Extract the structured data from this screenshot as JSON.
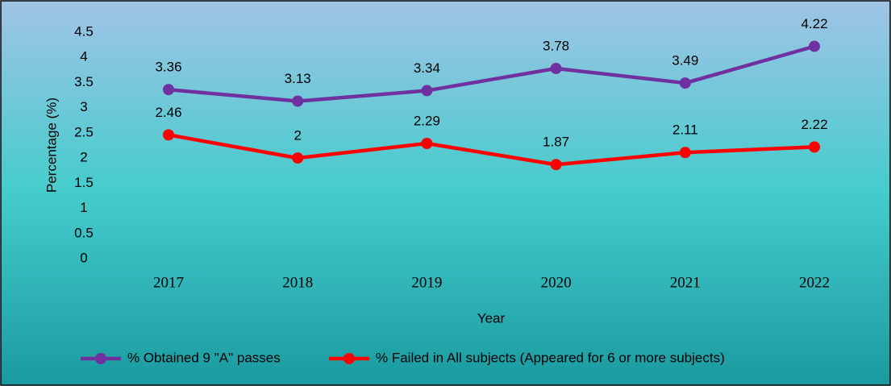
{
  "chart_data": {
    "type": "line",
    "categories": [
      "2017",
      "2018",
      "2019",
      "2020",
      "2021",
      "2022"
    ],
    "series": [
      {
        "name": "% Obtained 9 \"A\" passes",
        "color": "#7030a0",
        "values": [
          3.36,
          3.13,
          3.34,
          3.78,
          3.49,
          4.22
        ]
      },
      {
        "name": "% Failed in All subjects (Appeared for 6 or more subjects)",
        "color": "#ff0000",
        "values": [
          2.46,
          2,
          2.29,
          1.87,
          2.11,
          2.22
        ]
      }
    ],
    "xlabel": "Year",
    "ylabel": "Percentage (%)",
    "ylim": [
      0,
      4.5
    ],
    "yticks": [
      0,
      0.5,
      1,
      1.5,
      2,
      2.5,
      3,
      3.5,
      4,
      4.5
    ],
    "legend": "bottom"
  }
}
